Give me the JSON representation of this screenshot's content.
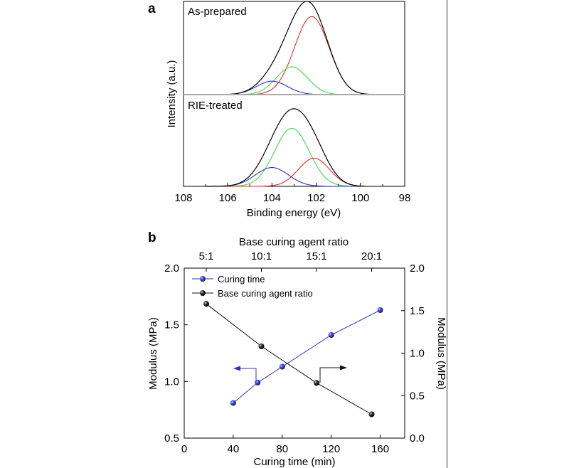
{
  "chart_data": [
    {
      "panel_label": "a",
      "type": "line",
      "xlabel": "Binding energy (eV)",
      "ylabel": "Intensity (a.u.)",
      "xlim": [
        108,
        98
      ],
      "x_ticks": [
        108,
        106,
        104,
        102,
        100,
        98
      ],
      "x_tick_labels": [
        "108",
        "106",
        "104",
        "102",
        "100",
        "98"
      ],
      "grid": false,
      "subplots": [
        {
          "label": "As-prepared",
          "x_range": [
            106.0,
            99.6
          ],
          "peaks": [
            {
              "color": "#e0312c",
              "center": 102.2,
              "height": 0.93,
              "sigma": 0.78
            },
            {
              "color": "#3fd94a",
              "center": 103.1,
              "height": 0.33,
              "sigma": 0.7
            },
            {
              "color": "#2a31c4",
              "center": 104.0,
              "height": 0.16,
              "sigma": 0.7
            }
          ],
          "envelope_color": "#000000"
        },
        {
          "label": "RIE-treated",
          "x_range": [
            107.0,
            99.8
          ],
          "peaks": [
            {
              "color": "#3fd94a",
              "center": 103.1,
              "height": 0.68,
              "sigma": 0.78
            },
            {
              "color": "#e0312c",
              "center": 102.1,
              "height": 0.33,
              "sigma": 0.7
            },
            {
              "color": "#2a31c4",
              "center": 104.0,
              "height": 0.22,
              "sigma": 0.75
            }
          ],
          "envelope_color": "#000000"
        }
      ]
    },
    {
      "panel_label": "b",
      "type": "line",
      "xlabel": "Curing time (min)",
      "ylabel": "Modulus (MPa)",
      "ylabel_right": "Modulus (MPa)",
      "top_xlabel": "Base curing agent ratio",
      "xlim": [
        0,
        180
      ],
      "ylim": [
        0.5,
        2.0
      ],
      "ylim_right": [
        0.0,
        2.0
      ],
      "x_ticks": [
        0,
        40,
        80,
        120,
        160
      ],
      "x_tick_labels": [
        "0",
        "40",
        "80",
        "120",
        "160"
      ],
      "y_ticks": [
        0.5,
        1.0,
        1.5,
        2.0
      ],
      "y_tick_labels": [
        "0.5",
        "1.0",
        "1.5",
        "2.0"
      ],
      "y_right_ticks": [
        0.0,
        0.5,
        1.0,
        1.5,
        2.0
      ],
      "y_right_tick_labels": [
        "0.0",
        "0.5",
        "1.0",
        "1.5",
        "2.0"
      ],
      "top_ticks": [
        {
          "ratio": 5,
          "label": "5:1"
        },
        {
          "ratio": 10,
          "label": "10:1"
        },
        {
          "ratio": 15,
          "label": "15:1"
        },
        {
          "ratio": 20,
          "label": "20:1"
        }
      ],
      "top_xlim": [
        3,
        23
      ],
      "legend_position": "top-left",
      "grid": false,
      "series": [
        {
          "name": "Curing time",
          "axis": "left",
          "x_axis": "bottom",
          "color": "#2a31c4",
          "x": [
            40,
            60,
            80,
            120,
            160
          ],
          "y": [
            0.81,
            0.99,
            1.13,
            1.41,
            1.63
          ]
        },
        {
          "name": "Base curing agent ratio",
          "axis": "right",
          "x_axis": "top",
          "color": "#111111",
          "x": [
            5,
            10,
            15,
            20
          ],
          "y": [
            1.58,
            1.08,
            0.65,
            0.28
          ]
        }
      ]
    }
  ]
}
